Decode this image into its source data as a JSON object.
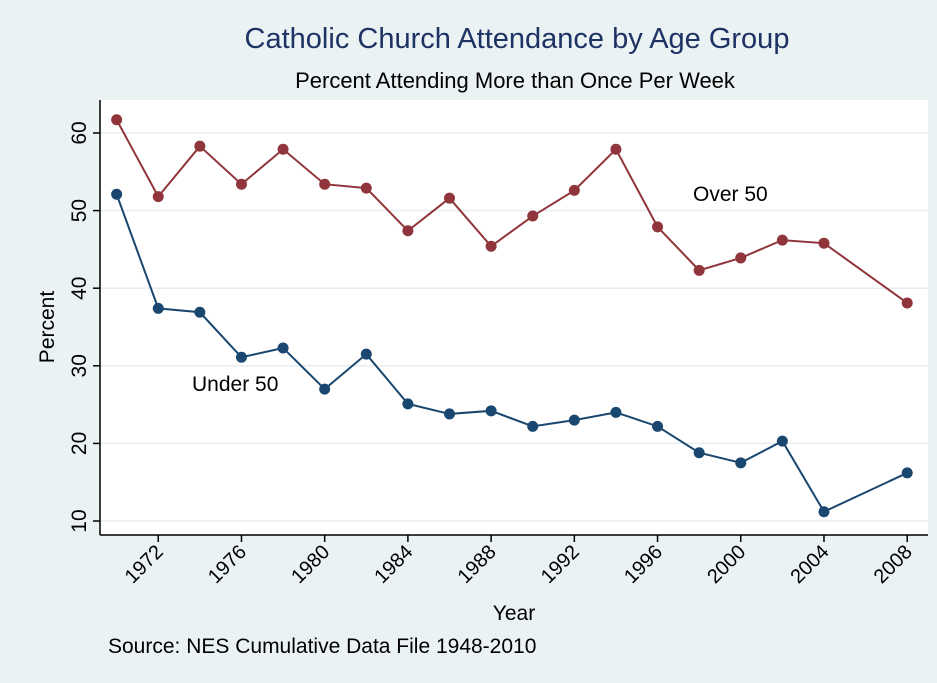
{
  "chart_data": {
    "type": "line",
    "title": "Catholic Church Attendance by Age Group",
    "subtitle": "Percent Attending More than Once Per Week",
    "x_label": "Year",
    "y_label": "Percent",
    "source": "Source:  NES Cumulative Data File 1948-2010",
    "x": [
      1970,
      1972,
      1974,
      1976,
      1978,
      1980,
      1982,
      1984,
      1986,
      1988,
      1990,
      1992,
      1994,
      1996,
      1998,
      2000,
      2002,
      2004,
      2008
    ],
    "series": [
      {
        "name": "Over 50",
        "color": "#90353b",
        "values": [
          61.7,
          51.8,
          58.3,
          53.4,
          57.9,
          53.4,
          52.9,
          47.4,
          51.6,
          45.4,
          49.3,
          52.6,
          57.9,
          47.9,
          42.3,
          43.9,
          46.2,
          45.8,
          38.1
        ]
      },
      {
        "name": "Under 50",
        "color": "#1a476f",
        "values": [
          52.1,
          37.4,
          36.9,
          31.1,
          32.3,
          27.0,
          31.5,
          25.1,
          23.8,
          24.2,
          22.2,
          23.0,
          24.0,
          22.2,
          18.8,
          17.5,
          20.3,
          11.2,
          16.2
        ]
      }
    ],
    "xlim": [
      1969.2,
      2009
    ],
    "ylim": [
      8.2,
      64.25
    ],
    "xticks": [
      1972,
      1976,
      1980,
      1984,
      1988,
      1992,
      1996,
      2000,
      2004,
      2008
    ],
    "yticks": [
      10,
      20,
      30,
      40,
      50,
      60
    ],
    "grid": true
  }
}
